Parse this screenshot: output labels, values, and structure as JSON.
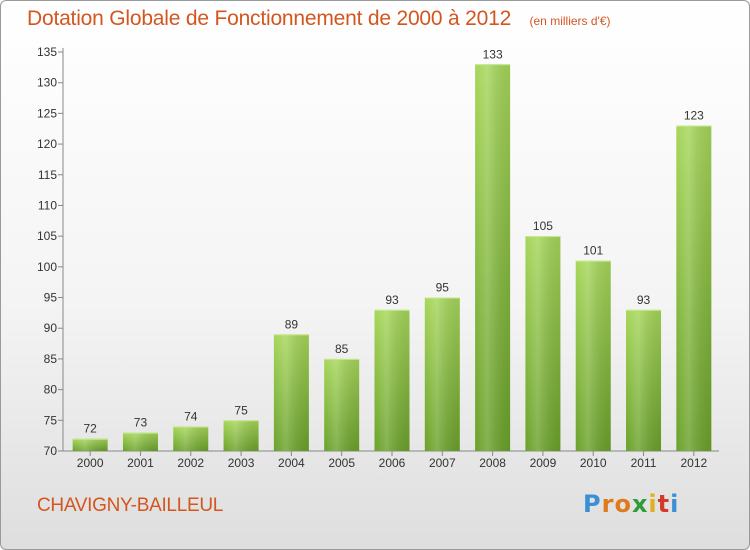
{
  "header": {
    "title": "Dotation Globale de Fonctionnement de 2000 à 2012",
    "subtitle": "(en milliers d'€)"
  },
  "footer": {
    "commune": "CHAVIGNY-BAILLEUL",
    "brand": "Proxiti",
    "brand_letters": [
      {
        "ch": "P",
        "color": "#3a8fd6"
      },
      {
        "ch": "r",
        "color": "#e07a1f"
      },
      {
        "ch": "o",
        "color": "#e07a1f"
      },
      {
        "ch": "x",
        "color": "#2e9c3a"
      },
      {
        "ch": "i",
        "color": "#e0b01f"
      },
      {
        "ch": "t",
        "color": "#d43a2a"
      },
      {
        "ch": "i",
        "color": "#3a8fd6"
      }
    ]
  },
  "chart_data": {
    "type": "bar",
    "categories": [
      "2000",
      "2001",
      "2002",
      "2003",
      "2004",
      "2005",
      "2006",
      "2007",
      "2008",
      "2009",
      "2010",
      "2011",
      "2012"
    ],
    "values": [
      72,
      73,
      74,
      75,
      89,
      85,
      93,
      95,
      133,
      105,
      101,
      93,
      123
    ],
    "ylim": [
      70,
      135
    ],
    "yticks": [
      70,
      75,
      80,
      85,
      90,
      95,
      100,
      105,
      110,
      115,
      120,
      125,
      130,
      135
    ],
    "grid": false,
    "colors": {
      "bar_top": "#a6d65a",
      "bar_bottom": "#6aa12a",
      "label": "#333333",
      "axis": "#888888"
    }
  }
}
